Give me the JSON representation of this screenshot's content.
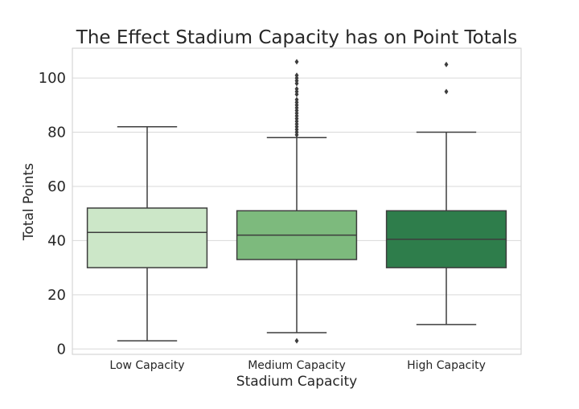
{
  "chart_data": {
    "type": "boxplot",
    "title": "The Effect Stadium Capacity has on Point Totals",
    "xlabel": "Stadium Capacity",
    "ylabel": "Total Points",
    "ylim": [
      -2,
      111
    ],
    "yticks": [
      0,
      20,
      40,
      60,
      80,
      100
    ],
    "grid": "horizontal",
    "categories": [
      "Low Capacity",
      "Medium Capacity",
      "High Capacity"
    ],
    "boxes": [
      {
        "name": "Low Capacity",
        "color": "#cce7c8",
        "whisker_low": 3,
        "q1": 30,
        "median": 43,
        "q3": 52,
        "whisker_high": 82,
        "outliers": []
      },
      {
        "name": "Medium Capacity",
        "color": "#7dba7d",
        "whisker_low": 6,
        "q1": 33,
        "median": 42,
        "q3": 51,
        "whisker_high": 78,
        "outliers": [
          3,
          79,
          80,
          81,
          82,
          83,
          84,
          85,
          86,
          87,
          88,
          89,
          90,
          91,
          92,
          94,
          95,
          96,
          98,
          99,
          100,
          101,
          106
        ]
      },
      {
        "name": "High Capacity",
        "color": "#2e7d4b",
        "whisker_low": 9,
        "q1": 30,
        "median": 40.5,
        "q3": 51,
        "whisker_high": 80,
        "outliers": [
          95,
          105
        ]
      }
    ]
  }
}
